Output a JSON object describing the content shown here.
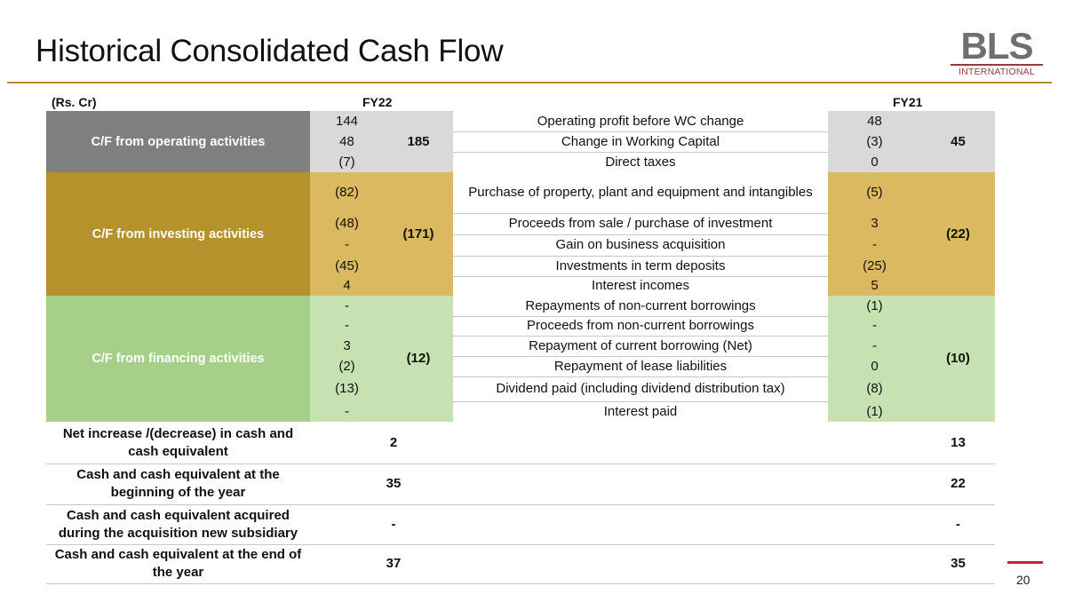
{
  "title": "Historical Consolidated Cash Flow",
  "logo": {
    "letters": "BLS",
    "sub": "INTERNATIONAL"
  },
  "headers": {
    "unit": "(Rs. Cr)",
    "fy22": "FY22",
    "fy21": "FY21"
  },
  "colors": {
    "operating_dark": "#7f7f7f",
    "operating_light": "#d9d9d9",
    "investing_dark": "#b6922d",
    "investing_light": "#dbb961",
    "financing_dark": "#a6d08a",
    "financing_light": "#c6e2b3"
  },
  "sections": {
    "operating": {
      "label": "C/F from operating activities",
      "total_fy22": "185",
      "total_fy21": "45",
      "rows": [
        {
          "fy22": "144",
          "desc": "Operating profit before WC change",
          "fy21": "48"
        },
        {
          "fy22": "48",
          "desc": "Change in Working Capital",
          "fy21": "(3)"
        },
        {
          "fy22": "(7)",
          "desc": "Direct taxes",
          "fy21": "0"
        }
      ]
    },
    "investing": {
      "label": "C/F from investing activities",
      "total_fy22": "(171)",
      "total_fy21": "(22)",
      "rows": [
        {
          "fy22": "(82)",
          "desc": "Purchase of property, plant and equipment and intangibles",
          "fy21": "(5)"
        },
        {
          "fy22": "(48)",
          "desc": "Proceeds from sale / purchase of investment",
          "fy21": "3"
        },
        {
          "fy22": "-",
          "desc": "Gain on business acquisition",
          "fy21": "-"
        },
        {
          "fy22": "(45)",
          "desc": "Investments in term deposits",
          "fy21": "(25)"
        },
        {
          "fy22": "4",
          "desc": "Interest incomes",
          "fy21": "5"
        }
      ]
    },
    "financing": {
      "label": "C/F from financing activities",
      "total_fy22": "(12)",
      "total_fy21": "(10)",
      "rows": [
        {
          "fy22": "-",
          "desc": "Repayments of non-current borrowings",
          "fy21": "(1)"
        },
        {
          "fy22": "-",
          "desc": "Proceeds from non-current borrowings",
          "fy21": "-"
        },
        {
          "fy22": "3",
          "desc": "Repayment of current borrowing (Net)",
          "fy21": "-"
        },
        {
          "fy22": "(2)",
          "desc": "Repayment of lease liabilities",
          "fy21": "0"
        },
        {
          "fy22": "(13)",
          "desc": "Dividend paid (including dividend distribution tax)",
          "fy21": "(8)"
        },
        {
          "fy22": "-",
          "desc": "Interest paid",
          "fy21": "(1)"
        }
      ]
    }
  },
  "summary": [
    {
      "label": "Net increase /(decrease) in cash and cash equivalent",
      "fy22": "2",
      "fy21": "13"
    },
    {
      "label": "Cash and cash equivalent at the beginning of the year",
      "fy22": "35",
      "fy21": "22"
    },
    {
      "label": "Cash and cash equivalent acquired during the acquisition new subsidiary",
      "fy22": "-",
      "fy21": "-"
    },
    {
      "label": "Cash and cash equivalent at the end of the year",
      "fy22": "37",
      "fy21": "35"
    }
  ],
  "slide_number": "20"
}
